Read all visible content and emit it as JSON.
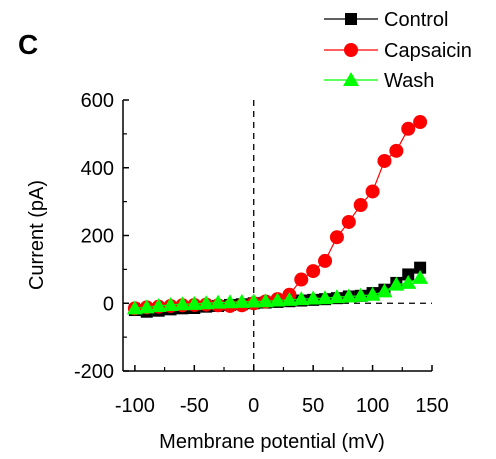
{
  "panel_label": "C",
  "chart_data": {
    "type": "line",
    "xlabel": "Membrane potential (mV)",
    "ylabel": "Current (pA)",
    "xlim": [
      -110,
      150
    ],
    "ylim": [
      -200,
      600
    ],
    "xticks": [
      -100,
      -50,
      0,
      50,
      100,
      150
    ],
    "yticks": [
      -200,
      0,
      200,
      400,
      600
    ],
    "reference_lines": {
      "horizontal_dashed_at_y": 0,
      "vertical_dashed_at_x": 0
    },
    "legend_position": "top-right",
    "series": [
      {
        "name": "Control",
        "marker": "square",
        "color": "#000000",
        "x": [
          -100,
          -90,
          -80,
          -70,
          -60,
          -50,
          -40,
          -30,
          -20,
          -10,
          0,
          10,
          20,
          30,
          40,
          50,
          60,
          70,
          80,
          90,
          100,
          110,
          120,
          130,
          140
        ],
        "y": [
          -20,
          -25,
          -22,
          -18,
          -15,
          -14,
          -10,
          -8,
          -5,
          -3,
          0,
          2,
          4,
          6,
          8,
          10,
          12,
          15,
          20,
          22,
          30,
          40,
          60,
          85,
          105
        ]
      },
      {
        "name": "Capsaicin",
        "marker": "circle",
        "color": "#ff0000",
        "x": [
          -100,
          -90,
          -80,
          -70,
          -60,
          -50,
          -40,
          -30,
          -20,
          -10,
          0,
          10,
          20,
          30,
          40,
          50,
          60,
          70,
          80,
          90,
          100,
          110,
          120,
          130,
          140
        ],
        "y": [
          -15,
          -12,
          -10,
          -8,
          -6,
          -5,
          -4,
          -6,
          -8,
          -6,
          0,
          5,
          12,
          25,
          70,
          95,
          125,
          195,
          240,
          290,
          330,
          420,
          450,
          515,
          535
        ]
      },
      {
        "name": "Wash",
        "marker": "triangle",
        "color": "#00ff00",
        "x": [
          -100,
          -90,
          -80,
          -70,
          -60,
          -50,
          -40,
          -30,
          -20,
          -10,
          0,
          10,
          20,
          30,
          40,
          50,
          60,
          70,
          80,
          90,
          100,
          110,
          120,
          130,
          140
        ],
        "y": [
          -15,
          -12,
          -8,
          -5,
          -3,
          -2,
          0,
          2,
          3,
          4,
          5,
          6,
          8,
          10,
          12,
          14,
          15,
          18,
          20,
          22,
          25,
          35,
          55,
          60,
          75
        ]
      }
    ]
  }
}
